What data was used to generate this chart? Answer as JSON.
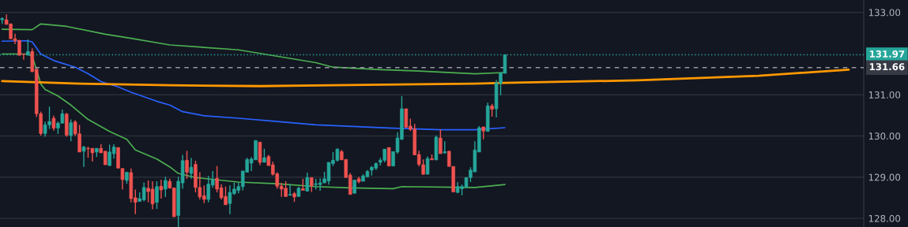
{
  "chart_data": {
    "type": "candlestick",
    "categories": [
      null,
      null,
      null,
      null,
      null,
      null,
      null,
      null,
      null,
      null,
      null,
      null,
      null,
      null,
      null,
      null,
      null,
      null,
      null,
      null,
      null,
      null,
      null,
      null,
      null,
      null,
      null,
      null,
      null,
      null,
      null,
      null,
      null,
      null,
      null,
      null,
      null,
      null,
      null,
      null,
      null,
      null,
      null,
      null,
      null,
      null,
      null,
      null,
      null,
      null,
      null,
      null,
      null,
      null,
      null,
      null,
      null,
      null,
      null,
      null,
      null,
      null,
      null,
      null,
      null,
      null,
      null,
      null,
      null,
      null,
      null,
      null,
      null,
      null,
      null,
      null,
      null,
      null,
      null,
      null,
      null,
      null,
      null,
      null,
      null,
      null,
      null,
      null,
      null,
      null,
      null,
      null,
      null,
      null,
      null,
      null,
      null,
      null,
      null,
      null,
      null,
      null,
      null,
      null,
      null,
      null,
      null,
      null,
      null,
      null,
      null,
      null,
      null,
      null,
      null,
      null,
      null,
      null,
      null,
      null,
      null,
      null,
      null,
      null,
      null,
      null,
      null,
      null,
      null,
      null,
      null,
      null,
      null,
      null,
      null,
      null,
      null,
      null,
      null,
      null,
      null,
      null,
      null,
      null,
      null,
      null,
      null,
      null,
      null,
      null,
      null,
      null,
      null,
      null,
      null,
      null,
      null,
      null,
      null,
      null,
      null,
      null,
      null,
      null,
      null,
      null,
      null,
      null,
      null,
      null,
      null,
      null,
      null,
      null,
      null,
      null,
      null,
      null,
      null,
      null,
      null,
      null,
      null,
      null,
      null,
      null,
      null,
      null,
      null,
      null,
      null,
      null,
      null,
      null,
      null,
      null,
      null,
      null,
      null,
      null,
      null
    ],
    "ohlc": [
      [
        132.82,
        132.88,
        132.72,
        132.85
      ],
      [
        132.82,
        132.95,
        132.7,
        132.71
      ],
      [
        132.72,
        132.73,
        132.35,
        132.36
      ],
      [
        132.36,
        132.48,
        132.23,
        132.31
      ],
      [
        132.32,
        132.33,
        131.95,
        131.96
      ],
      [
        131.99,
        132.0,
        131.85,
        131.98
      ],
      [
        131.96,
        132.34,
        131.96,
        132.05
      ],
      [
        132.05,
        132.13,
        131.55,
        131.56
      ],
      [
        131.62,
        131.62,
        130.46,
        130.54
      ],
      [
        130.54,
        130.59,
        130.01,
        130.06
      ],
      [
        130.06,
        130.35,
        129.98,
        130.27
      ],
      [
        130.27,
        130.71,
        130.17,
        130.35
      ],
      [
        130.43,
        130.49,
        130.13,
        130.19
      ],
      [
        130.19,
        130.35,
        130.05,
        130.31
      ],
      [
        130.31,
        130.64,
        130.31,
        130.54
      ],
      [
        130.53,
        130.56,
        129.98,
        130.02
      ],
      [
        130.01,
        130.4,
        129.87,
        130.32
      ],
      [
        130.34,
        130.38,
        130.0,
        130.05
      ],
      [
        130.05,
        130.27,
        129.61,
        129.61
      ],
      [
        129.63,
        129.76,
        129.25,
        129.73
      ],
      [
        129.7,
        129.74,
        129.47,
        129.69
      ],
      [
        129.7,
        129.7,
        129.38,
        129.59
      ],
      [
        129.61,
        129.7,
        129.49,
        129.7
      ],
      [
        129.7,
        129.8,
        129.59,
        129.59
      ],
      [
        129.63,
        129.63,
        129.3,
        129.3
      ],
      [
        129.28,
        129.79,
        129.28,
        129.61
      ],
      [
        129.57,
        129.8,
        129.45,
        129.73
      ],
      [
        129.72,
        129.72,
        129.21,
        129.22
      ],
      [
        129.21,
        129.21,
        128.7,
        128.94
      ],
      [
        128.92,
        129.12,
        128.84,
        129.12
      ],
      [
        129.11,
        129.21,
        128.39,
        128.48
      ],
      [
        128.5,
        128.7,
        128.1,
        128.39
      ],
      [
        128.41,
        128.63,
        128.41,
        128.48
      ],
      [
        128.45,
        128.87,
        128.41,
        128.75
      ],
      [
        128.73,
        128.92,
        128.39,
        128.65
      ],
      [
        128.71,
        128.9,
        128.22,
        128.35
      ],
      [
        128.39,
        128.9,
        128.23,
        128.77
      ],
      [
        128.78,
        128.94,
        128.48,
        128.69
      ],
      [
        128.71,
        129.01,
        128.52,
        128.92
      ],
      [
        128.9,
        128.96,
        128.72,
        128.74
      ],
      [
        128.74,
        128.74,
        128.04,
        128.04
      ],
      [
        128.07,
        129.01,
        127.79,
        128.9
      ],
      [
        128.86,
        129.54,
        128.72,
        129.4
      ],
      [
        129.41,
        129.64,
        128.96,
        129.12
      ],
      [
        129.09,
        129.47,
        128.96,
        129.24
      ],
      [
        129.31,
        129.4,
        128.63,
        128.75
      ],
      [
        128.75,
        129.12,
        128.46,
        128.52
      ],
      [
        128.55,
        128.8,
        128.37,
        128.46
      ],
      [
        128.46,
        129.03,
        128.39,
        128.83
      ],
      [
        128.81,
        129.15,
        128.74,
        128.95
      ],
      [
        128.97,
        129.27,
        128.63,
        128.71
      ],
      [
        128.74,
        128.83,
        128.46,
        128.5
      ],
      [
        128.53,
        128.77,
        128.33,
        128.33
      ],
      [
        128.36,
        128.8,
        128.1,
        128.63
      ],
      [
        128.6,
        128.87,
        128.57,
        128.71
      ],
      [
        128.68,
        128.87,
        128.61,
        128.77
      ],
      [
        128.77,
        129.15,
        128.68,
        129.15
      ],
      [
        129.12,
        129.47,
        129.12,
        129.43
      ],
      [
        129.34,
        129.49,
        129.15,
        129.44
      ],
      [
        129.42,
        129.89,
        129.42,
        129.89
      ],
      [
        129.85,
        129.85,
        129.29,
        129.36
      ],
      [
        129.36,
        129.69,
        129.36,
        129.47
      ],
      [
        129.5,
        129.54,
        129.28,
        129.28
      ],
      [
        129.3,
        129.38,
        129.04,
        129.07
      ],
      [
        129.08,
        129.12,
        128.72,
        128.78
      ],
      [
        128.78,
        128.86,
        128.52,
        128.71
      ],
      [
        128.73,
        128.9,
        128.53,
        128.53
      ],
      [
        128.56,
        128.83,
        128.56,
        128.58
      ],
      [
        128.6,
        128.64,
        128.4,
        128.52
      ],
      [
        128.53,
        128.77,
        128.53,
        128.73
      ],
      [
        128.72,
        128.96,
        128.68,
        128.68
      ],
      [
        128.66,
        129.11,
        128.65,
        128.99
      ],
      [
        128.99,
        128.99,
        128.64,
        128.79
      ],
      [
        128.82,
        128.96,
        128.7,
        128.84
      ],
      [
        128.82,
        128.97,
        128.67,
        128.86
      ],
      [
        128.86,
        129.13,
        128.86,
        128.96
      ],
      [
        128.91,
        129.36,
        128.82,
        129.36
      ],
      [
        129.33,
        129.61,
        129.27,
        129.41
      ],
      [
        129.41,
        129.7,
        129.38,
        129.68
      ],
      [
        129.62,
        129.66,
        129.42,
        129.42
      ],
      [
        129.43,
        129.43,
        128.99,
        128.99
      ],
      [
        129.05,
        129.1,
        128.58,
        128.58
      ],
      [
        128.61,
        128.93,
        128.6,
        128.93
      ],
      [
        128.96,
        129.01,
        128.85,
        128.89
      ],
      [
        128.9,
        129.07,
        128.9,
        129.03
      ],
      [
        129.01,
        129.17,
        129.0,
        129.14
      ],
      [
        129.17,
        129.27,
        129.04,
        129.24
      ],
      [
        129.22,
        129.36,
        129.17,
        129.33
      ],
      [
        129.36,
        129.47,
        129.28,
        129.41
      ],
      [
        129.41,
        129.68,
        129.36,
        129.68
      ],
      [
        129.72,
        129.72,
        129.27,
        129.27
      ],
      [
        129.27,
        129.62,
        129.27,
        129.62
      ],
      [
        129.61,
        130.09,
        129.57,
        129.95
      ],
      [
        129.92,
        130.97,
        129.9,
        130.66
      ],
      [
        130.66,
        130.66,
        130.21,
        130.21
      ],
      [
        130.24,
        130.42,
        130.12,
        130.16
      ],
      [
        130.17,
        130.29,
        129.54,
        129.54
      ],
      [
        129.55,
        129.64,
        129.26,
        129.31
      ],
      [
        129.3,
        129.43,
        129.06,
        129.07
      ],
      [
        129.07,
        129.5,
        129.07,
        129.45
      ],
      [
        129.45,
        129.55,
        129.42,
        129.42
      ],
      [
        129.42,
        130.01,
        129.41,
        129.97
      ],
      [
        129.95,
        130.16,
        129.57,
        129.57
      ],
      [
        129.59,
        129.87,
        129.57,
        129.62
      ],
      [
        129.63,
        129.63,
        129.26,
        129.26
      ],
      [
        129.26,
        129.26,
        128.64,
        128.64
      ],
      [
        128.63,
        128.88,
        128.61,
        128.77
      ],
      [
        128.72,
        128.82,
        128.56,
        128.77
      ],
      [
        128.75,
        128.99,
        128.74,
        128.99
      ],
      [
        128.99,
        129.24,
        128.88,
        129.17
      ],
      [
        129.13,
        129.87,
        129.12,
        129.66
      ],
      [
        129.61,
        130.24,
        129.61,
        130.2
      ],
      [
        130.22,
        130.22,
        129.92,
        130.12
      ],
      [
        130.11,
        130.81,
        130.11,
        130.73
      ],
      [
        130.73,
        130.78,
        130.47,
        130.65
      ],
      [
        130.66,
        131.36,
        130.45,
        131.29
      ],
      [
        131.28,
        131.54,
        130.99,
        131.53
      ],
      [
        131.52,
        131.97,
        131.52,
        131.97
      ],
      null,
      null,
      null,
      null,
      null,
      null,
      null,
      null,
      null,
      null,
      null,
      null,
      null,
      null,
      null,
      null,
      null,
      null,
      null,
      null,
      null,
      null,
      null,
      null,
      null,
      null,
      null,
      null,
      null,
      null,
      null,
      null,
      null,
      null,
      null,
      null,
      null,
      null,
      null,
      null,
      null,
      null,
      null,
      null,
      null,
      null,
      null,
      null,
      null,
      null,
      null,
      null,
      null,
      null,
      null,
      null,
      null,
      null,
      null,
      null,
      null,
      null,
      null,
      null,
      null,
      null,
      null,
      null,
      null,
      null,
      null,
      null,
      null,
      null,
      null,
      null,
      null,
      null,
      null,
      null,
      null,
      null,
      null
    ],
    "series": [
      {
        "type": "line",
        "color": "#2962ff",
        "values": [
          132.3,
          null,
          null,
          null,
          null,
          null,
          132.31,
          132.28,
          null,
          131.99,
          null,
          null,
          131.83,
          null,
          null,
          null,
          null,
          131.67,
          null,
          null,
          131.51,
          null,
          null,
          131.32,
          null,
          null,
          null,
          131.19,
          null,
          null,
          131.06,
          null,
          null,
          null,
          null,
          null,
          130.84,
          null,
          null,
          130.75,
          null,
          null,
          130.59,
          null,
          null,
          null,
          null,
          130.49,
          null,
          null,
          null,
          null,
          null,
          null,
          null,
          130.43,
          null,
          null,
          null,
          null,
          null,
          null,
          null,
          null,
          130.35,
          null,
          null,
          null,
          null,
          null,
          null,
          null,
          null,
          130.27,
          null,
          null,
          null,
          null,
          null,
          null,
          null,
          null,
          null,
          null,
          null,
          null,
          null,
          null,
          null,
          null,
          null,
          130.19,
          null,
          null,
          null,
          null,
          null,
          null,
          null,
          null,
          null,
          null,
          130.15,
          null,
          null,
          null,
          null,
          null,
          null,
          null,
          130.15,
          null,
          null,
          null,
          null,
          null,
          null,
          130.2,
          null,
          null,
          null,
          null,
          null,
          null,
          null,
          null,
          null,
          null,
          null,
          null,
          null,
          null,
          null,
          null,
          null,
          null,
          null,
          null,
          null,
          null,
          null,
          null,
          null,
          null,
          null,
          null,
          null,
          null,
          null,
          null,
          null,
          null,
          null,
          null,
          null,
          null,
          null,
          null,
          null,
          null,
          null,
          null,
          null,
          null,
          null,
          null,
          null,
          null,
          null,
          null,
          null,
          null,
          null,
          null,
          null,
          null,
          null,
          null,
          null,
          null,
          null,
          null,
          null,
          null,
          null,
          null,
          null,
          null,
          null,
          null,
          null,
          null,
          null,
          null,
          null,
          null,
          null,
          null,
          null,
          null,
          null
        ]
      },
      {
        "type": "line",
        "color": "#4caf50",
        "values": [
          132.59,
          null,
          null,
          null,
          null,
          null,
          null,
          132.58,
          null,
          132.72,
          null,
          null,
          null,
          null,
          null,
          132.66,
          null,
          null,
          null,
          null,
          null,
          null,
          null,
          null,
          132.47,
          null,
          null,
          null,
          null,
          null,
          132.37,
          null,
          null,
          null,
          null,
          null,
          null,
          null,
          null,
          132.21,
          null,
          null,
          null,
          null,
          null,
          null,
          null,
          null,
          null,
          null,
          null,
          null,
          null,
          null,
          null,
          132.09,
          null,
          null,
          null,
          null,
          null,
          null,
          null,
          null,
          null,
          null,
          null,
          null,
          null,
          null,
          null,
          null,
          null,
          131.78,
          null,
          null,
          null,
          131.67,
          null,
          null,
          null,
          null,
          null,
          null,
          null,
          null,
          null,
          null,
          131.61,
          null,
          null,
          null,
          null,
          null,
          null,
          null,
          131.58,
          null,
          null,
          null,
          null,
          null,
          null,
          null,
          null,
          null,
          null,
          null,
          null,
          null,
          131.51,
          null,
          null,
          null,
          null,
          null,
          null,
          131.54,
          null,
          null,
          null,
          null,
          null,
          null,
          null,
          null,
          null,
          null,
          null,
          null,
          null,
          null,
          null,
          null,
          null,
          null,
          null,
          null,
          null,
          null,
          null,
          null,
          null,
          null,
          null,
          null,
          null,
          null,
          null,
          null,
          null,
          null,
          null,
          null,
          null,
          null,
          null,
          null,
          null,
          null,
          null,
          null,
          null,
          null,
          null,
          null,
          null,
          null,
          null,
          null,
          null,
          null,
          null,
          null,
          null,
          null,
          null,
          null,
          null,
          null,
          null,
          null,
          null,
          null,
          null,
          null,
          null,
          null,
          null,
          null,
          null,
          null,
          null,
          null,
          null,
          null,
          null,
          null,
          null,
          null,
          null
        ]
      },
      {
        "type": "line",
        "color": "#4caf50",
        "values": [
          131.99,
          null,
          null,
          null,
          null,
          null,
          131.99,
          131.93,
          131.61,
          131.26,
          131.13,
          null,
          null,
          130.97,
          null,
          null,
          130.75,
          null,
          null,
          null,
          130.4,
          null,
          null,
          null,
          null,
          130.11,
          null,
          null,
          null,
          129.92,
          null,
          129.66,
          null,
          null,
          null,
          null,
          129.44,
          null,
          null,
          129.25,
          null,
          129.09,
          null,
          null,
          null,
          128.99,
          null,
          null,
          null,
          null,
          null,
          null,
          null,
          null,
          null,
          128.88,
          null,
          null,
          null,
          null,
          null,
          null,
          null,
          null,
          128.84,
          null,
          null,
          null,
          null,
          null,
          null,
          null,
          null,
          128.77,
          null,
          null,
          null,
          null,
          null,
          null,
          null,
          128.74,
          null,
          null,
          null,
          null,
          null,
          null,
          null,
          null,
          null,
          128.72,
          null,
          128.77,
          null,
          null,
          null,
          null,
          null,
          null,
          null,
          null,
          null,
          null,
          null,
          null,
          null,
          null,
          null,
          null,
          128.75,
          null,
          null,
          null,
          null,
          null,
          null,
          128.82,
          null,
          null,
          null,
          null,
          null,
          null,
          null,
          null,
          null,
          null,
          null,
          null,
          null,
          null,
          null,
          null,
          null,
          null,
          null,
          null,
          null,
          null,
          null,
          null,
          null,
          null,
          null,
          null,
          null,
          null,
          null,
          null,
          null,
          null,
          null,
          null,
          null,
          null,
          null,
          null,
          null,
          null,
          null,
          null,
          null,
          null,
          null,
          null,
          null,
          null,
          null,
          null,
          null,
          null,
          null,
          null,
          null,
          null,
          null,
          null,
          null,
          null,
          null,
          null,
          null,
          null,
          null,
          null,
          null,
          null,
          null,
          null,
          null,
          null,
          null,
          null,
          null,
          null,
          null,
          null,
          null,
          null,
          null
        ]
      },
      {
        "type": "line",
        "color": "#ff9800",
        "values": [
          131.33,
          null,
          null,
          null,
          null,
          null,
          null,
          null,
          null,
          null,
          null,
          null,
          null,
          null,
          null,
          null,
          null,
          null,
          131.27,
          null,
          null,
          null,
          null,
          null,
          null,
          null,
          null,
          null,
          null,
          null,
          null,
          null,
          null,
          null,
          null,
          null,
          null,
          null,
          null,
          131.23,
          null,
          null,
          null,
          null,
          null,
          null,
          null,
          null,
          null,
          null,
          null,
          null,
          null,
          null,
          null,
          null,
          null,
          null,
          null,
          null,
          131.21,
          null,
          null,
          null,
          null,
          null,
          null,
          null,
          null,
          null,
          null,
          null,
          null,
          null,
          null,
          null,
          null,
          131.23,
          null,
          null,
          null,
          null,
          null,
          null,
          null,
          null,
          null,
          null,
          null,
          null,
          null,
          null,
          null,
          null,
          null,
          null,
          null,
          null,
          null,
          null,
          null,
          null,
          null,
          null,
          null,
          null,
          null,
          null,
          null,
          null,
          131.27,
          null,
          null,
          null,
          null,
          null,
          null,
          131.29,
          null,
          null,
          null,
          null,
          null,
          null,
          null,
          null,
          null,
          null,
          null,
          null,
          null,
          null,
          null,
          null,
          null,
          null,
          null,
          null,
          null,
          null,
          null,
          null,
          null,
          null,
          null,
          null,
          null,
          null,
          131.35,
          null,
          null,
          null,
          null,
          null,
          null,
          null,
          null,
          null,
          null,
          null,
          null,
          null,
          null,
          null,
          null,
          null,
          null,
          null,
          null,
          null,
          null,
          null,
          null,
          null,
          null,
          null,
          131.46,
          null,
          null,
          null,
          null,
          null,
          null,
          null,
          null,
          null,
          null,
          null,
          null,
          null,
          null,
          null,
          null,
          null,
          null,
          null,
          null,
          131.61,
          null,
          null,
          null
        ]
      }
    ],
    "ylim": [
      127.79,
      133.3
    ],
    "yticks": [
      {
        "value": 128,
        "label": "128.00"
      },
      {
        "value": 129,
        "label": "129.00"
      },
      {
        "value": 130,
        "label": "130.00"
      },
      {
        "value": 131,
        "label": "131.00"
      },
      {
        "value": 133,
        "label": "133.00"
      }
    ],
    "tick_labels": "y",
    "grid": "y",
    "legend": false,
    "ref_lines": [
      {
        "axis": "y",
        "value": 131.97,
        "label": "131.97",
        "color": "#26a69a",
        "line_style": "dotted"
      },
      {
        "axis": "y",
        "value": 131.66,
        "label": "131.66",
        "color": "#9598a1",
        "line_style": "dashed"
      }
    ]
  }
}
